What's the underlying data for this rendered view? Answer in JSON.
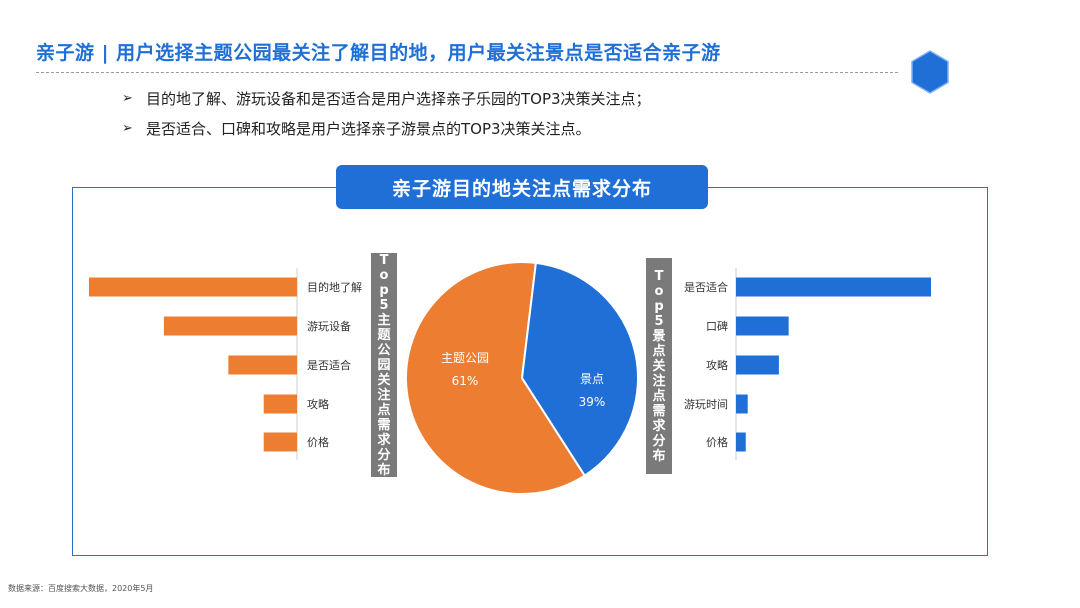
{
  "header": {
    "title": "亲子游 | 用户选择主题公园最关注了解目的地，用户最关注景点是否适合亲子游"
  },
  "bullets": [
    "目的地了解、游玩设备和是否适合是用户选择亲子乐园的TOP3决策关注点；",
    "是否适合、口碑和攻略是用户选择亲子游景点的TOP3决策关注点。"
  ],
  "bullet_marker": "➢",
  "panel": {
    "title": "亲子游目的地关注点需求分布"
  },
  "left_label": "Top5主题公园关注点需求分布",
  "right_label": "Top5景点关注点需求分布",
  "source": "数据来源：百度搜索大数据，2020年5月",
  "colors": {
    "orange": "#ed7d31",
    "blue": "#1f6fd6",
    "grey_label": "#7a7a7a"
  },
  "chart_data": [
    {
      "type": "bar",
      "orientation": "horizontal",
      "categories": [
        "目的地了解",
        "游玩设备",
        "是否适合",
        "攻略",
        "价格"
      ],
      "values": [
        100,
        64,
        33,
        16,
        16
      ],
      "xlim": [
        0,
        100
      ],
      "note_units": "relative index (no axis printed)"
    },
    {
      "type": "pie",
      "slices": [
        {
          "label": "主题公园",
          "value": 61,
          "value_label": "61%",
          "color": "#ed7d31"
        },
        {
          "label": "景点",
          "value": 39,
          "value_label": "39%",
          "color": "#1f6fd6"
        }
      ]
    },
    {
      "type": "bar",
      "orientation": "horizontal",
      "categories": [
        "是否适合",
        "口碑",
        "攻略",
        "游玩时间",
        "价格"
      ],
      "values": [
        100,
        27,
        22,
        6,
        5
      ],
      "xlim": [
        0,
        100
      ]
    }
  ]
}
